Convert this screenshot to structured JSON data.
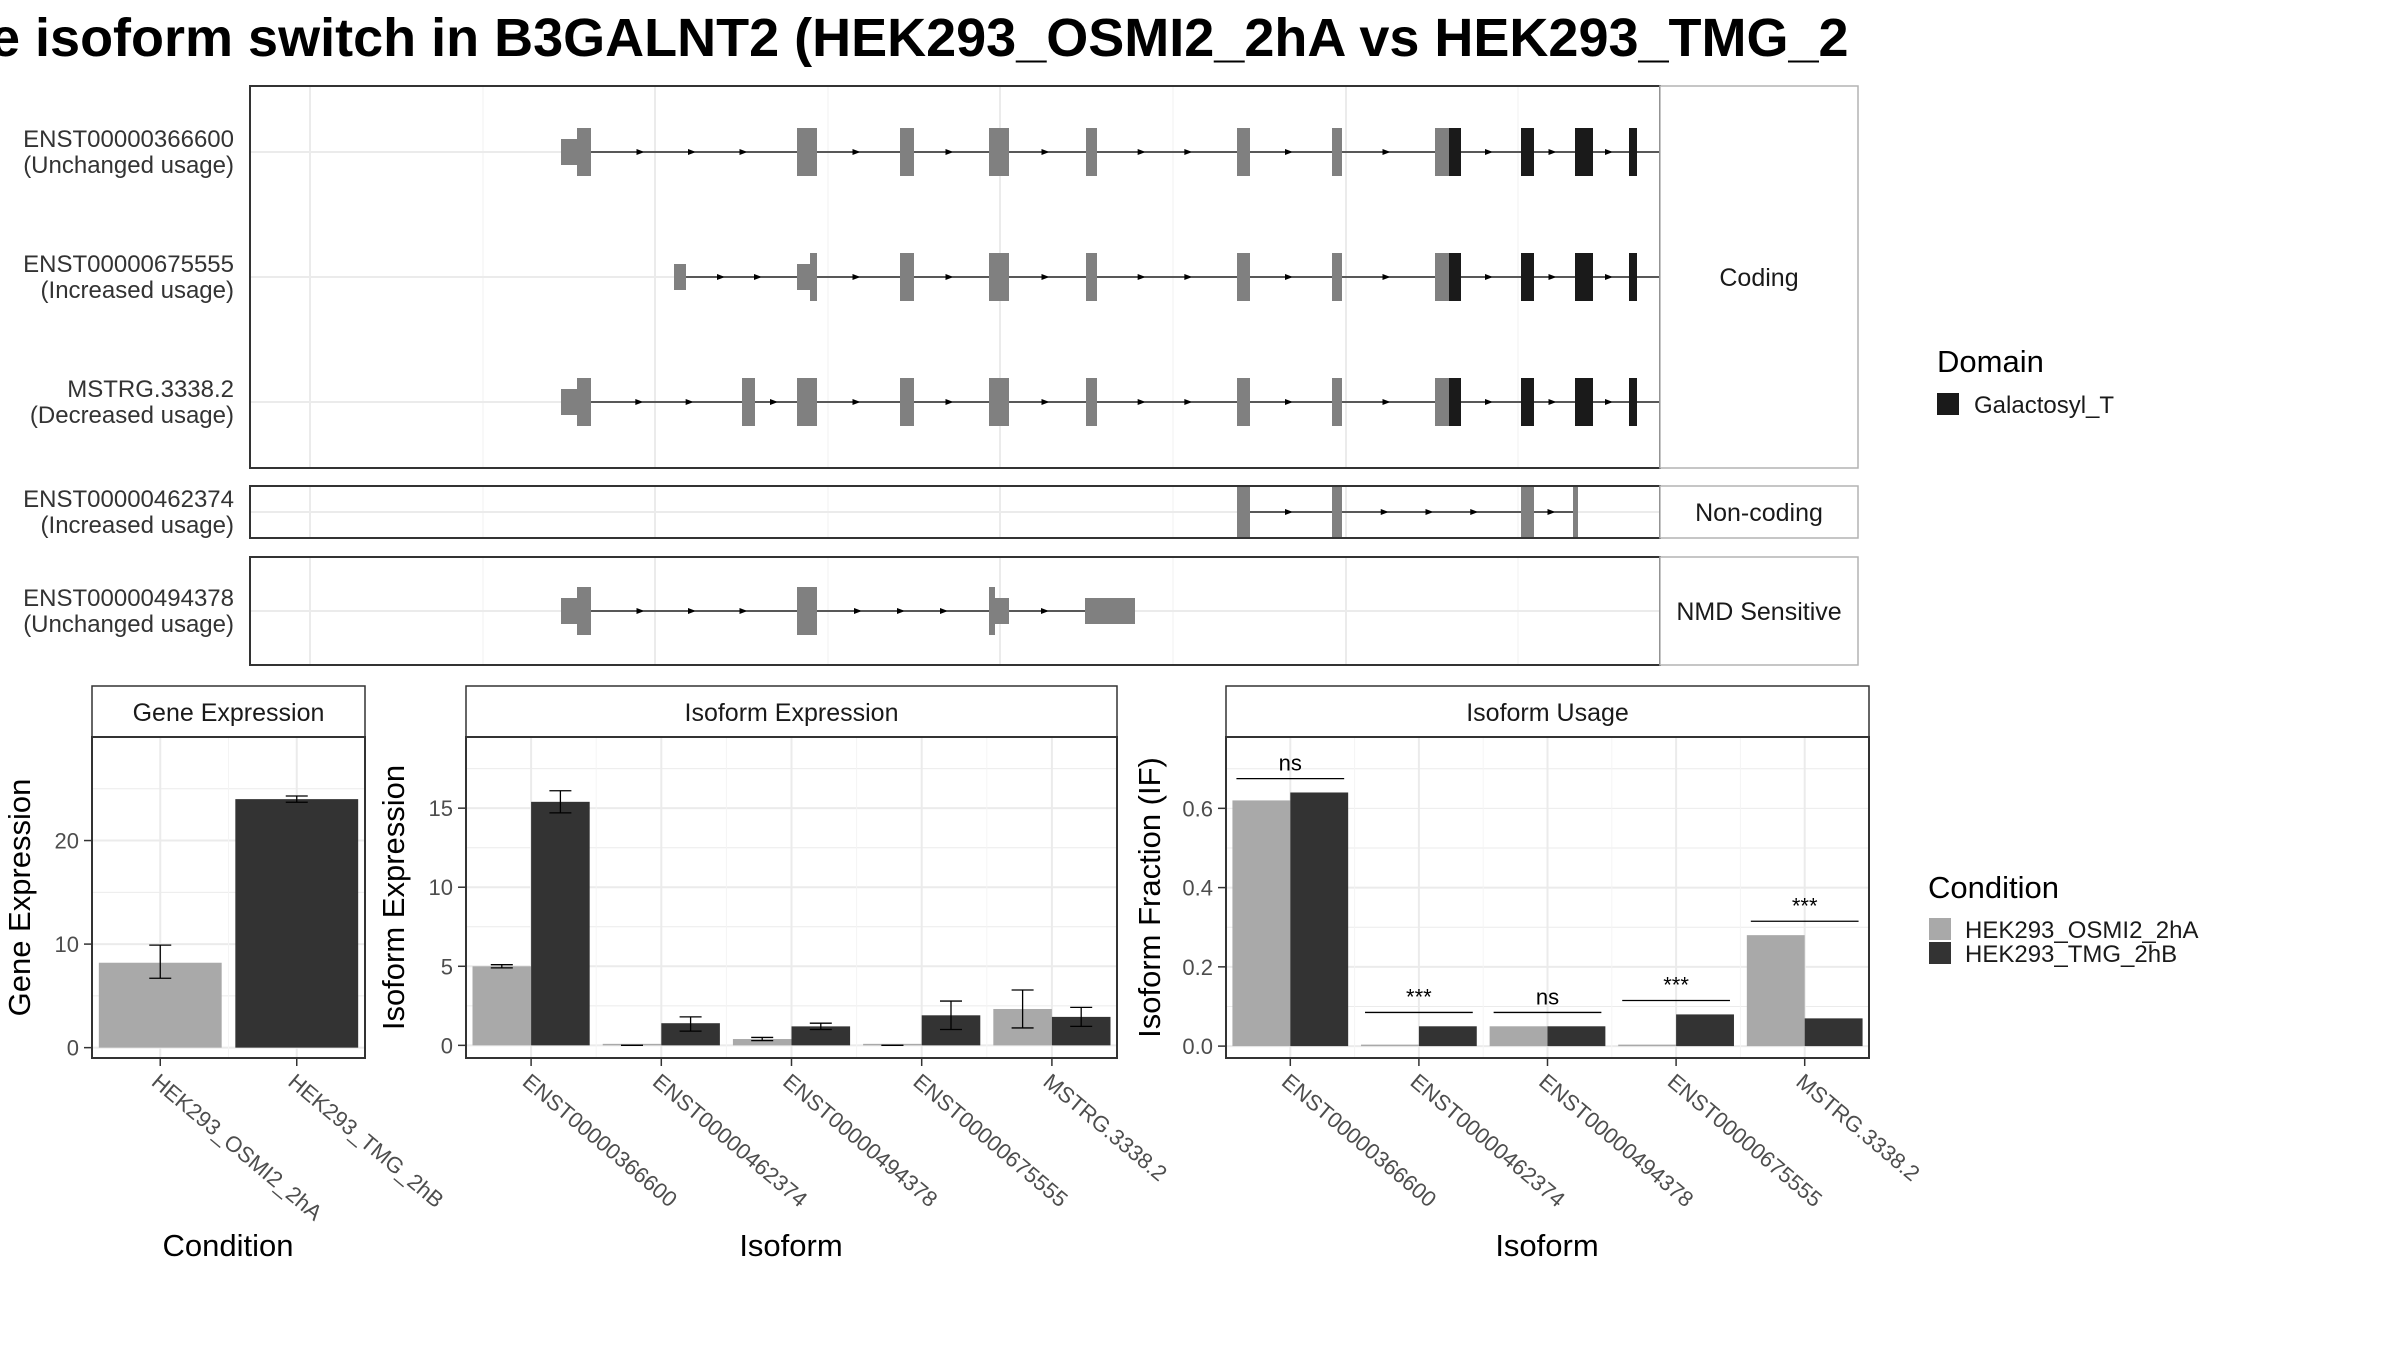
{
  "title": "e isoform switch in B3GALNT2 (HEK293_OSMI2_2hA vs HEK293_TMG_2",
  "colors": {
    "exon": "#808080",
    "domain": "#1a1a1a",
    "cond1": "#a9a9a9",
    "cond2": "#333333"
  },
  "structure": {
    "genomic_ticks": [
      60,
      233,
      405,
      578,
      750,
      923,
      1096,
      1268,
      1441
    ],
    "domain_legend_title": "Domain",
    "domain_legend_item": "Galactosyl_T",
    "facets": [
      {
        "label": "Coding",
        "isoforms": [
          {
            "id": "ENST00000366600",
            "status": "(Unchanged usage)",
            "intron": [
              324,
              1450
            ],
            "exons": [
              [
                311,
                327,
                "utr"
              ],
              [
                327,
                341,
                "cds"
              ],
              [
                547,
                567,
                "cds"
              ],
              [
                650,
                664,
                "cds"
              ],
              [
                739,
                759,
                "cds"
              ],
              [
                836,
                847,
                "cds"
              ],
              [
                987,
                1000,
                "cds"
              ],
              [
                1082,
                1092,
                "cds"
              ],
              [
                1185,
                1199,
                "cds"
              ],
              [
                1199,
                1211,
                "dom"
              ],
              [
                1271,
                1284,
                "dom"
              ],
              [
                1325,
                1343,
                "dom"
              ],
              [
                1379,
                1387,
                "dom"
              ],
              [
                1447,
                1463,
                "cds"
              ],
              [
                1463,
                1580,
                "utr"
              ]
            ]
          },
          {
            "id": "ENST00000675555",
            "status": "(Increased usage)",
            "intron": [
              430,
              1450
            ],
            "exons": [
              [
                424,
                436,
                "utr"
              ],
              [
                547,
                560,
                "utr"
              ],
              [
                560,
                567,
                "cds"
              ],
              [
                650,
                664,
                "cds"
              ],
              [
                739,
                759,
                "cds"
              ],
              [
                836,
                847,
                "cds"
              ],
              [
                987,
                1000,
                "cds"
              ],
              [
                1082,
                1092,
                "cds"
              ],
              [
                1185,
                1199,
                "cds"
              ],
              [
                1199,
                1211,
                "dom"
              ],
              [
                1271,
                1284,
                "dom"
              ],
              [
                1325,
                1343,
                "dom"
              ],
              [
                1379,
                1387,
                "dom"
              ],
              [
                1447,
                1463,
                "cds"
              ],
              [
                1463,
                1500,
                "utr"
              ]
            ]
          },
          {
            "id": "MSTRG.3338.2",
            "status": "(Decreased usage)",
            "intron": [
              324,
              1540
            ],
            "exons": [
              [
                311,
                327,
                "utr"
              ],
              [
                327,
                341,
                "cds"
              ],
              [
                492,
                505,
                "cds"
              ],
              [
                547,
                567,
                "cds"
              ],
              [
                650,
                664,
                "cds"
              ],
              [
                739,
                759,
                "cds"
              ],
              [
                836,
                847,
                "cds"
              ],
              [
                987,
                1000,
                "cds"
              ],
              [
                1082,
                1092,
                "cds"
              ],
              [
                1185,
                1199,
                "cds"
              ],
              [
                1199,
                1211,
                "dom"
              ],
              [
                1271,
                1284,
                "dom"
              ],
              [
                1325,
                1343,
                "dom"
              ],
              [
                1379,
                1387,
                "dom"
              ],
              [
                1447,
                1457,
                "cds"
              ],
              [
                1531,
                1540,
                "cds"
              ],
              [
                1540,
                1592,
                "utr"
              ]
            ]
          }
        ]
      },
      {
        "label": "Non-coding",
        "isoforms": [
          {
            "id": "ENST00000462374",
            "status": "(Increased usage)",
            "intron": [
              993,
              1328
            ],
            "exons": [
              [
                987,
                1000,
                "ncd"
              ],
              [
                1082,
                1092,
                "ncd"
              ],
              [
                1271,
                1284,
                "ncd"
              ],
              [
                1323,
                1328,
                "ncd"
              ]
            ]
          }
        ]
      },
      {
        "label": "NMD Sensitive",
        "isoforms": [
          {
            "id": "ENST00000494378",
            "status": "(Unchanged usage)",
            "intron": [
              324,
              835
            ],
            "exons": [
              [
                311,
                327,
                "utr"
              ],
              [
                327,
                341,
                "cds"
              ],
              [
                547,
                567,
                "cds"
              ],
              [
                739,
                745,
                "cds"
              ],
              [
                745,
                759,
                "utr"
              ],
              [
                835,
                885,
                "utr"
              ]
            ]
          }
        ]
      }
    ]
  },
  "conditions": [
    "HEK293_OSMI2_2hA",
    "HEK293_TMG_2hB"
  ],
  "condition_legend_title": "Condition",
  "chart_data": [
    {
      "type": "bar",
      "panel": "Gene Expression",
      "xlabel": "Condition",
      "ylabel": "Gene Expression",
      "categories": [
        "HEK293_OSMI2_2hA",
        "HEK293_TMG_2hB"
      ],
      "series": [
        {
          "name": "HEK293_OSMI2_2hA",
          "values": [
            8.2,
            null
          ],
          "err_low": [
            6.7,
            null
          ],
          "err_high": [
            9.9,
            null
          ]
        },
        {
          "name": "HEK293_TMG_2hB",
          "values": [
            null,
            24.0
          ],
          "err_low": [
            null,
            23.7
          ],
          "err_high": [
            null,
            24.3
          ]
        }
      ],
      "ylim": [
        -1,
        30
      ],
      "yticks": [
        0,
        10,
        20
      ]
    },
    {
      "type": "bar",
      "panel": "Isoform Expression",
      "xlabel": "Isoform",
      "ylabel": "Isoform Expression",
      "categories": [
        "ENST00000366600",
        "ENST00000462374",
        "ENST00000494378",
        "ENST00000675555",
        "MSTRG.3338.2"
      ],
      "series": [
        {
          "name": "HEK293_OSMI2_2hA",
          "values": [
            5.0,
            0.0,
            0.4,
            0.0,
            2.3
          ],
          "err_low": [
            4.9,
            0.0,
            0.3,
            0.0,
            1.1
          ],
          "err_high": [
            5.1,
            0.0,
            0.5,
            0.0,
            3.5
          ]
        },
        {
          "name": "HEK293_TMG_2hB",
          "values": [
            15.4,
            1.4,
            1.2,
            1.9,
            1.8
          ],
          "err_low": [
            14.7,
            0.9,
            1.0,
            1.0,
            1.2
          ],
          "err_high": [
            16.1,
            1.8,
            1.4,
            2.8,
            2.4
          ]
        }
      ],
      "ylim": [
        -0.8,
        19.5
      ],
      "yticks": [
        0,
        5,
        10,
        15
      ]
    },
    {
      "type": "bar",
      "panel": "Isoform Usage",
      "xlabel": "Isoform",
      "ylabel": "Isoform Fraction (IF)",
      "categories": [
        "ENST00000366600",
        "ENST00000462374",
        "ENST00000494378",
        "ENST00000675555",
        "MSTRG.3338.2"
      ],
      "series": [
        {
          "name": "HEK293_OSMI2_2hA",
          "values": [
            0.62,
            0.0,
            0.05,
            0.0,
            0.28
          ]
        },
        {
          "name": "HEK293_TMG_2hB",
          "values": [
            0.64,
            0.05,
            0.05,
            0.08,
            0.07
          ]
        }
      ],
      "significance": [
        "ns",
        "***",
        "ns",
        "***",
        "***"
      ],
      "ylim": [
        -0.03,
        0.78
      ],
      "yticks": [
        0.0,
        0.2,
        0.4,
        0.6
      ]
    }
  ]
}
